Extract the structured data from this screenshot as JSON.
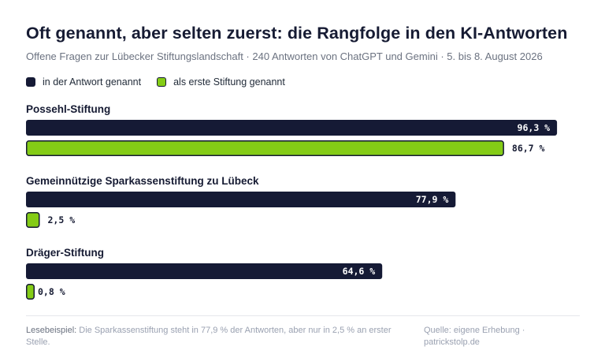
{
  "header": {
    "title": "Oft genannt, aber selten zuerst: die Rangfolge in den KI-Antworten",
    "subtitle": "Offene Fragen zur Lübecker Stiftungslandschaft · 240 Antworten von ChatGPT und Gemini · 5. bis 8. August 2026"
  },
  "legend": [
    {
      "label": "in der Antwort genannt",
      "color": "#151a35"
    },
    {
      "label": "als erste Stiftung genannt",
      "color": "#84cc16"
    }
  ],
  "chart_data": {
    "type": "bar",
    "orientation": "horizontal",
    "categories": [
      "Possehl-Stiftung",
      "Gemeinnützige Sparkassenstiftung zu Lübeck",
      "Dräger-Stiftung"
    ],
    "series": [
      {
        "name": "in der Antwort genannt",
        "values": [
          96.3,
          77.9,
          64.6
        ],
        "labels": [
          "96,3 %",
          "77,9 %",
          "64,6 %"
        ],
        "color": "#151a35"
      },
      {
        "name": "als erste Stiftung genannt",
        "values": [
          86.7,
          2.5,
          0.8
        ],
        "labels": [
          "86,7 %",
          "2,5 %",
          "0,8 %"
        ],
        "color": "#84cc16"
      }
    ],
    "xlim": [
      0,
      100
    ],
    "unit": "%",
    "legend_position": "top-left",
    "grid": false
  },
  "footer": {
    "example_lead": "Lesebeispiel:",
    "example_text": " Die Sparkassenstiftung steht in 77,9 % der Antworten, aber nur in 2,5 % an erster Stelle.",
    "source": "Quelle: eigene Erhebung · patrickstolp.de"
  }
}
